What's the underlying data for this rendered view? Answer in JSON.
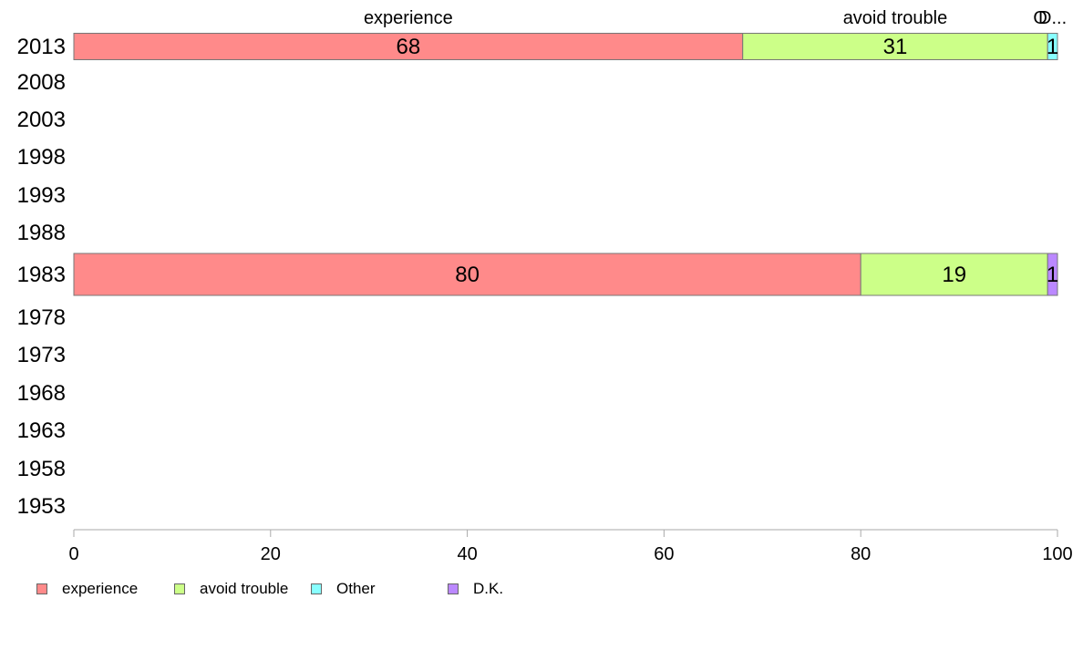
{
  "chart_data": {
    "type": "bar",
    "orientation": "horizontal",
    "stacked": true,
    "categories": [
      "2013",
      "2008",
      "2003",
      "1998",
      "1993",
      "1988",
      "1983",
      "1978",
      "1973",
      "1968",
      "1963",
      "1958",
      "1953"
    ],
    "series": [
      {
        "name": "experience",
        "color": "#ff8a8a",
        "values": [
          68,
          null,
          null,
          null,
          null,
          null,
          80,
          null,
          null,
          null,
          null,
          null,
          null
        ]
      },
      {
        "name": "avoid trouble",
        "color": "#ccff88",
        "values": [
          31,
          null,
          null,
          null,
          null,
          null,
          19,
          null,
          null,
          null,
          null,
          null,
          null
        ]
      },
      {
        "name": "Other",
        "color": "#88ffff",
        "values": [
          1,
          null,
          null,
          null,
          null,
          null,
          0,
          null,
          null,
          null,
          null,
          null,
          null
        ]
      },
      {
        "name": "D.K.",
        "color": "#bb88ff",
        "values": [
          0,
          null,
          null,
          null,
          null,
          null,
          1,
          null,
          null,
          null,
          null,
          null,
          null
        ]
      }
    ],
    "data_labels": {
      "2013": [
        "68",
        "31",
        "1",
        ""
      ],
      "1983": [
        "80",
        "19",
        "",
        "1"
      ]
    },
    "top_labels": [
      "experience",
      "avoid trouble",
      "O",
      "D..."
    ],
    "xlim": [
      0,
      100
    ],
    "xticks": [
      "0",
      "20",
      "40",
      "60",
      "80",
      "100"
    ],
    "grid": false,
    "legend_position": "bottom-left"
  }
}
